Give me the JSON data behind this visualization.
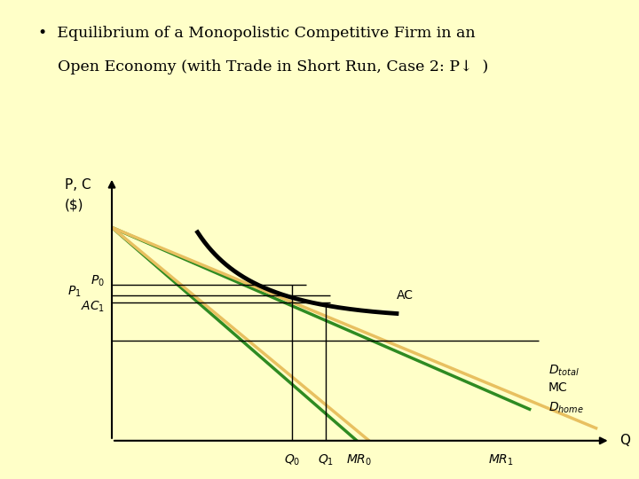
{
  "bg_color": "#FFFFC8",
  "title_line1": "•  Equilibrium of a Monopolistic Competitive Firm in an",
  "title_line2": "    Open Economy (with Trade in Short Run, Case 2: P↓  )",
  "title_fontsize": 12.5,
  "colors": {
    "D_total": "#2E8B22",
    "D_home": "#E8C060",
    "AC_curve": "#000000",
    "lines": "#000000"
  },
  "P0": 6.2,
  "P1": 5.8,
  "AC1": 5.5,
  "MC_level": 4.0,
  "Q0": 3.8,
  "Q1": 4.5,
  "MR0": 5.2,
  "MR1": 8.2
}
